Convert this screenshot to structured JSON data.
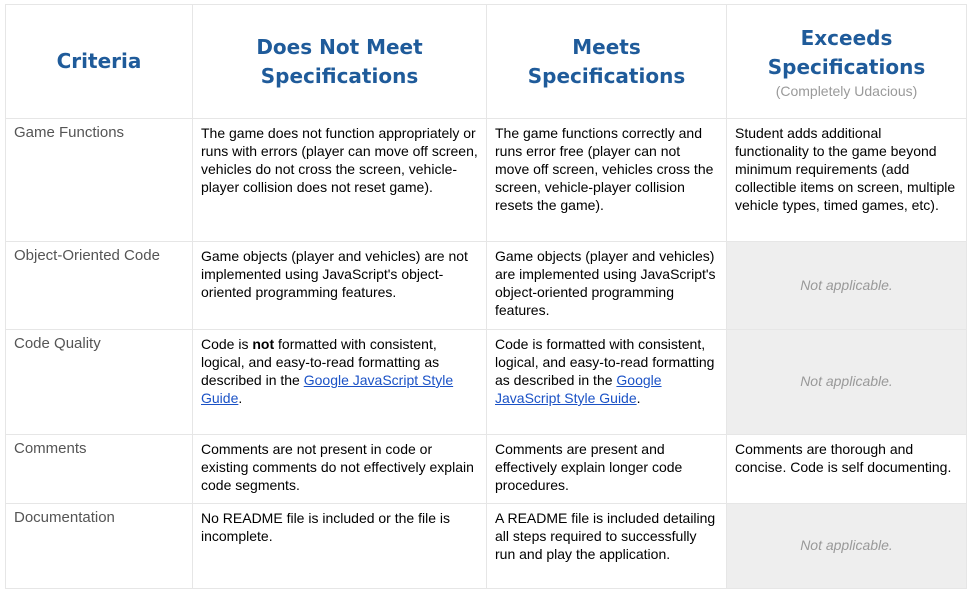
{
  "headers": {
    "criteria": "Criteria",
    "does_not_meet": "Does Not Meet Specifications",
    "meets": "Meets Specifications",
    "exceeds": "Exceeds Specifications",
    "exceeds_sub": "(Completely Udacious)"
  },
  "rows": {
    "game_functions": {
      "criteria": "Game Functions",
      "does_not_meet": "The game does not function appropriately or runs with errors (player can move off screen, vehicles do not cross the screen, vehicle-player collision does not reset game).",
      "meets": "The game functions correctly and runs error free (player can not move off screen, vehicles cross the screen, vehicle-player collision resets the game).",
      "exceeds": "Student adds additional functionality to the game beyond minimum requirements (add collectible items on screen, multiple vehicle types, timed games, etc)."
    },
    "oop": {
      "criteria": "Object-Oriented Code",
      "does_not_meet": "Game objects (player and vehicles) are not implemented using JavaScript's object-oriented programming features.",
      "meets": "Game objects (player and vehicles) are implemented using JavaScript's object-oriented programming features.",
      "exceeds": "Not applicable."
    },
    "code_quality": {
      "criteria": "Code Quality",
      "dnm_pre": "Code is ",
      "dnm_bold": "not",
      "dnm_mid": " formatted with consistent, logical, and easy-to-read formatting as described in the ",
      "dnm_link": "Google JavaScript Style Guide",
      "dnm_post": ".",
      "meets_pre": "Code is formatted with consistent, logical, and easy-to-read formatting as described in the ",
      "meets_link": "Google JavaScript Style Guide",
      "meets_post": ".",
      "exceeds": "Not applicable."
    },
    "comments": {
      "criteria": "Comments",
      "does_not_meet": "Comments are not present in code or existing comments do not effectively explain code segments.",
      "meets": "Comments are present and effectively explain longer code procedures.",
      "exceeds": "Comments are thorough and concise. Code is self documenting."
    },
    "documentation": {
      "criteria": "Documentation",
      "does_not_meet": "No README file is included or the file is incomplete.",
      "meets": "A README file is included detailing all steps required to successfully run and play the application.",
      "exceeds": "Not applicable."
    }
  }
}
